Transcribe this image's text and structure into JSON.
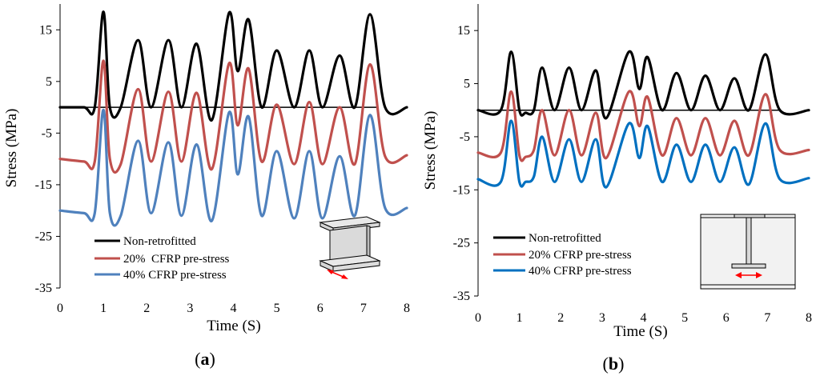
{
  "figure": {
    "panels": [
      {
        "id": "a",
        "caption_open": "(",
        "caption_letter": "a",
        "caption_close": ")",
        "legend": [
          "Non-retrofitted",
          "20%  CFRP pre-stress",
          "40% CFRP pre-stress"
        ],
        "inset": "i-beam-3d-icon"
      },
      {
        "id": "b",
        "caption_open": "(",
        "caption_letter": "b",
        "caption_close": ")",
        "legend": [
          "Non-retrofitted",
          "20% CFRP pre-stress",
          "40% CFRP pre-stress"
        ],
        "inset": "i-beam-section-icon"
      }
    ]
  },
  "colors": {
    "non_retrofitted": "#000000",
    "cfrp_20": "#C0504D",
    "cfrp_40_a": "#4F81BD",
    "cfrp_40_b": "#0070C0",
    "axis": "#000000",
    "arrow": "#FF0000"
  },
  "chart_data": [
    {
      "type": "line",
      "title": "",
      "xlabel": "Time (S)",
      "ylabel": "Stress (MPa)",
      "xlim": [
        0,
        8
      ],
      "ylim": [
        -35,
        20
      ],
      "xticks": [
        "0",
        "1",
        "2",
        "3",
        "4",
        "5",
        "6",
        "7",
        "8"
      ],
      "yticks": [
        "15",
        "5",
        "-5",
        "-15",
        "-25",
        "-35"
      ],
      "ytick_values": [
        15,
        5,
        -5,
        -15,
        -25,
        -35
      ],
      "grid": false,
      "reference_line_y": 0,
      "legend_position": "bottom-left",
      "series": [
        {
          "name": "Non-retrofitted",
          "color": "#000000",
          "x": [
            0,
            0.55,
            0.8,
            1.0,
            1.15,
            1.4,
            1.8,
            2.1,
            2.5,
            2.8,
            3.15,
            3.5,
            3.9,
            4.1,
            4.35,
            4.65,
            5.0,
            5.4,
            5.75,
            6.05,
            6.45,
            6.8,
            7.15,
            7.5,
            8
          ],
          "y": [
            0,
            0,
            0,
            18.5,
            0,
            0,
            13,
            0,
            13,
            0,
            12.3,
            -2.5,
            18.3,
            7,
            17,
            0,
            11,
            0,
            11,
            0,
            10,
            0,
            18,
            0,
            0
          ]
        },
        {
          "name": "20%  CFRP pre-stress",
          "color": "#C0504D",
          "x": [
            0,
            0.55,
            0.8,
            1.0,
            1.15,
            1.4,
            1.8,
            2.1,
            2.5,
            2.8,
            3.15,
            3.5,
            3.9,
            4.1,
            4.35,
            4.65,
            5.0,
            5.4,
            5.75,
            6.05,
            6.45,
            6.8,
            7.15,
            7.5,
            8
          ],
          "y": [
            -10,
            -10.5,
            -10.5,
            9,
            -10,
            -11,
            3.5,
            -10.5,
            3,
            -10.5,
            2.8,
            -12,
            8.5,
            -3.5,
            7.5,
            -10.5,
            0.5,
            -11,
            1,
            -11,
            0,
            -11,
            8.3,
            -9.5,
            -9.3
          ]
        },
        {
          "name": "40% CFRP pre-stress",
          "color": "#4F81BD",
          "x": [
            0,
            0.55,
            0.8,
            1.0,
            1.15,
            1.4,
            1.8,
            2.1,
            2.5,
            2.8,
            3.15,
            3.5,
            3.9,
            4.1,
            4.35,
            4.65,
            5.0,
            5.4,
            5.75,
            6.05,
            6.45,
            6.8,
            7.15,
            7.5,
            8
          ],
          "y": [
            -20,
            -20.5,
            -20.5,
            -0.5,
            -20.5,
            -21,
            -6.5,
            -20.5,
            -6.8,
            -21,
            -7.2,
            -22,
            -1,
            -13,
            -1.8,
            -21,
            -8.5,
            -21.5,
            -8.5,
            -21.5,
            -9.5,
            -21,
            -1.5,
            -19.5,
            -19.5
          ]
        }
      ]
    },
    {
      "type": "line",
      "title": "",
      "xlabel": "Time (S)",
      "ylabel": "Stress (MPa)",
      "xlim": [
        0,
        8
      ],
      "ylim": [
        -35,
        20
      ],
      "xticks": [
        "0",
        "1",
        "2",
        "3",
        "4",
        "5",
        "6",
        "7",
        "8"
      ],
      "yticks": [
        "15",
        "5",
        "-5",
        "-15",
        "-25",
        "-35"
      ],
      "ytick_values": [
        15,
        5,
        -5,
        -15,
        -25,
        -35
      ],
      "grid": false,
      "reference_line_y": 0,
      "legend_position": "bottom-left",
      "series": [
        {
          "name": "Non-retrofitted",
          "color": "#000000",
          "x": [
            0,
            0.55,
            0.8,
            1.0,
            1.15,
            1.35,
            1.55,
            1.85,
            2.2,
            2.5,
            2.85,
            3.1,
            3.65,
            3.9,
            4.1,
            4.45,
            4.8,
            5.15,
            5.5,
            5.85,
            6.2,
            6.55,
            6.95,
            7.3,
            8
          ],
          "y": [
            0,
            0,
            11,
            0,
            -0.5,
            0,
            8,
            0,
            8,
            0,
            7.5,
            -1.5,
            11,
            4,
            10,
            0,
            7,
            0,
            6.5,
            0,
            6,
            0,
            10.5,
            0,
            0
          ]
        },
        {
          "name": "20% CFRP pre-stress",
          "color": "#C0504D",
          "x": [
            0,
            0.55,
            0.8,
            1.0,
            1.15,
            1.35,
            1.55,
            1.85,
            2.2,
            2.5,
            2.85,
            3.1,
            3.65,
            3.9,
            4.1,
            4.45,
            4.8,
            5.15,
            5.5,
            5.85,
            6.2,
            6.55,
            6.95,
            7.3,
            8
          ],
          "y": [
            -8,
            -8,
            3.5,
            -8.5,
            -8.8,
            -7.5,
            0,
            -8.5,
            0,
            -8.5,
            -0.5,
            -9,
            3.5,
            -3,
            2.5,
            -8.5,
            -1.5,
            -8.5,
            -1.5,
            -8.5,
            -2,
            -8.5,
            3,
            -7.5,
            -7.5
          ]
        },
        {
          "name": "40% CFRP pre-stress",
          "color": "#0070C0",
          "x": [
            0,
            0.55,
            0.8,
            1.0,
            1.15,
            1.35,
            1.55,
            1.85,
            2.2,
            2.5,
            2.85,
            3.1,
            3.65,
            3.9,
            4.1,
            4.45,
            4.8,
            5.15,
            5.5,
            5.85,
            6.2,
            6.55,
            6.95,
            7.3,
            8
          ],
          "y": [
            -13,
            -13.5,
            -2,
            -13.5,
            -13.5,
            -12.5,
            -5,
            -13.5,
            -5.5,
            -13.5,
            -5.5,
            -14.5,
            -2.5,
            -9,
            -3,
            -13.5,
            -6.5,
            -13.5,
            -6.5,
            -13.5,
            -7,
            -14,
            -2.5,
            -13,
            -12.8
          ]
        }
      ]
    }
  ]
}
